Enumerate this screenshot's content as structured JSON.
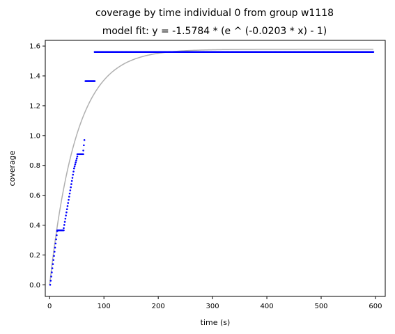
{
  "chart_data": {
    "type": "scatter",
    "title": "coverage by time individual 0 from group w1118",
    "subtitle": "model fit: y = -1.5784 * (e ^ (-0.0203 * x) - 1)",
    "xlabel": "time (s)",
    "ylabel": "coverage",
    "xlim": [
      -8,
      618
    ],
    "ylim": [
      -0.078,
      1.638
    ],
    "xticks": [
      0,
      100,
      200,
      300,
      400,
      500,
      600
    ],
    "yticks": [
      0.0,
      0.2,
      0.4,
      0.6,
      0.8,
      1.0,
      1.2,
      1.4,
      1.6
    ],
    "xtick_labels": [
      "0",
      "100",
      "200",
      "300",
      "400",
      "500",
      "600"
    ],
    "ytick_labels": [
      "0.0",
      "0.2",
      "0.4",
      "0.6",
      "0.8",
      "1.0",
      "1.2",
      "1.4",
      "1.6"
    ],
    "grid": false,
    "series": [
      {
        "kind": "scatter",
        "color": "#0000ff",
        "segments": [
          {
            "x_start": 1,
            "x_end": 14,
            "y_start": 0.0,
            "y_end": 0.36
          },
          {
            "x_start": 14,
            "x_end": 26,
            "y_start": 0.365,
            "y_end": 0.365
          },
          {
            "x_start": 26,
            "x_end": 45,
            "y_start": 0.38,
            "y_end": 0.78
          },
          {
            "x_start": 45,
            "x_end": 51,
            "y_start": 0.78,
            "y_end": 0.86
          },
          {
            "x_start": 51,
            "x_end": 62,
            "y_start": 0.875,
            "y_end": 0.875
          },
          {
            "x_start": 62,
            "x_end": 64,
            "y_start": 0.9,
            "y_end": 0.97
          },
          {
            "x_start": 66,
            "x_end": 83,
            "y_start": 1.365,
            "y_end": 1.365
          },
          {
            "x_start": 83,
            "x_end": 597,
            "y_start": 1.56,
            "y_end": 1.56
          }
        ]
      },
      {
        "kind": "line",
        "color": "#b0b0b0",
        "model": {
          "a": 1.5784,
          "k": 0.0203
        },
        "x_range": [
          0,
          597
        ]
      }
    ]
  }
}
